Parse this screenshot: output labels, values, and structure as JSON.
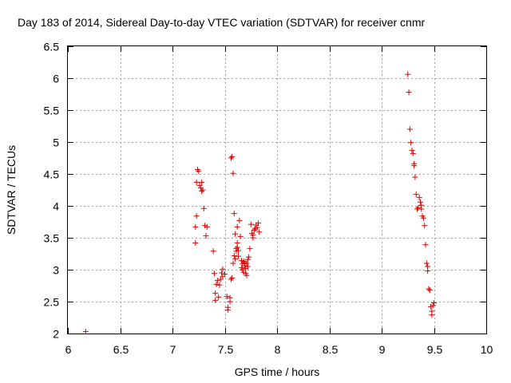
{
  "chart_data": {
    "type": "scatter",
    "title": "Day 183 of 2014, Sidereal Day-to-day VTEC variation (SDTVAR) for receiver cnmr",
    "xlabel": "GPS time / hours",
    "ylabel": "SDTVAR / TECUs",
    "xlim": [
      6,
      10
    ],
    "ylim": [
      2,
      6.5
    ],
    "xticks": [
      "6",
      "6.5",
      "7",
      "7.5",
      "8",
      "8.5",
      "9",
      "9.5",
      "10"
    ],
    "yticks": [
      "2",
      "2.5",
      "3",
      "3.5",
      "4",
      "4.5",
      "5",
      "5.5",
      "6",
      "6.5"
    ],
    "grid": true,
    "marker": "+",
    "marker_color": "#dd0000",
    "series": [
      {
        "name": "SDTVAR",
        "points": [
          [
            6.17,
            2.03
          ],
          [
            7.22,
            3.42
          ],
          [
            7.22,
            3.67
          ],
          [
            7.23,
            3.84
          ],
          [
            7.23,
            4.37
          ],
          [
            7.24,
            4.57
          ],
          [
            7.25,
            4.54
          ],
          [
            7.26,
            4.32
          ],
          [
            7.27,
            4.28
          ],
          [
            7.28,
            4.37
          ],
          [
            7.28,
            4.23
          ],
          [
            7.29,
            4.25
          ],
          [
            7.3,
            3.96
          ],
          [
            7.31,
            3.69
          ],
          [
            7.32,
            3.53
          ],
          [
            7.33,
            3.67
          ],
          [
            7.39,
            3.29
          ],
          [
            7.4,
            2.94
          ],
          [
            7.41,
            2.52
          ],
          [
            7.41,
            2.63
          ],
          [
            7.42,
            2.77
          ],
          [
            7.43,
            2.83
          ],
          [
            7.44,
            2.57
          ],
          [
            7.45,
            2.76
          ],
          [
            7.46,
            2.85
          ],
          [
            7.47,
            2.95
          ],
          [
            7.48,
            3.01
          ],
          [
            7.48,
            2.89
          ],
          [
            7.5,
            2.93
          ],
          [
            7.52,
            2.58
          ],
          [
            7.53,
            2.41
          ],
          [
            7.53,
            2.37
          ],
          [
            7.55,
            2.56
          ],
          [
            7.55,
            2.5
          ],
          [
            7.56,
            2.85
          ],
          [
            7.56,
            4.75
          ],
          [
            7.57,
            4.77
          ],
          [
            7.57,
            2.87
          ],
          [
            7.58,
            4.51
          ],
          [
            7.58,
            3.1
          ],
          [
            7.59,
            3.88
          ],
          [
            7.59,
            3.22
          ],
          [
            7.6,
            3.17
          ],
          [
            7.6,
            3.56
          ],
          [
            7.61,
            3.33
          ],
          [
            7.61,
            3.29
          ],
          [
            7.62,
            3.42
          ],
          [
            7.62,
            3.35
          ],
          [
            7.62,
            3.67
          ],
          [
            7.63,
            3.21
          ],
          [
            7.63,
            3.3
          ],
          [
            7.64,
            3.77
          ],
          [
            7.65,
            3.52
          ],
          [
            7.66,
            3.14
          ],
          [
            7.66,
            3.03
          ],
          [
            7.67,
            3.09
          ],
          [
            7.67,
            3.0
          ],
          [
            7.68,
            3.13
          ],
          [
            7.68,
            2.96
          ],
          [
            7.69,
            3.06
          ],
          [
            7.69,
            3.11
          ],
          [
            7.7,
            3.02
          ],
          [
            7.7,
            2.94
          ],
          [
            7.71,
            3.1
          ],
          [
            7.71,
            2.91
          ],
          [
            7.72,
            3.16
          ],
          [
            7.72,
            3.05
          ],
          [
            7.73,
            3.2
          ],
          [
            7.74,
            3.33
          ],
          [
            7.75,
            3.71
          ],
          [
            7.76,
            3.57
          ],
          [
            7.77,
            3.5
          ],
          [
            7.77,
            3.54
          ],
          [
            7.78,
            3.62
          ],
          [
            7.79,
            3.64
          ],
          [
            7.8,
            3.7
          ],
          [
            7.81,
            3.66
          ],
          [
            7.82,
            3.73
          ],
          [
            7.83,
            3.59
          ],
          [
            9.25,
            6.06
          ],
          [
            9.26,
            5.78
          ],
          [
            9.27,
            5.2
          ],
          [
            9.28,
            4.99
          ],
          [
            9.29,
            4.87
          ],
          [
            9.3,
            4.82
          ],
          [
            9.31,
            4.66
          ],
          [
            9.31,
            4.63
          ],
          [
            9.32,
            4.45
          ],
          [
            9.33,
            4.18
          ],
          [
            9.34,
            3.95
          ],
          [
            9.35,
            3.97
          ],
          [
            9.36,
            4.13
          ],
          [
            9.37,
            4.06
          ],
          [
            9.38,
            4.01
          ],
          [
            9.38,
            3.95
          ],
          [
            9.39,
            3.84
          ],
          [
            9.4,
            3.81
          ],
          [
            9.41,
            3.69
          ],
          [
            9.42,
            3.39
          ],
          [
            9.43,
            3.1
          ],
          [
            9.44,
            3.05
          ],
          [
            9.44,
            2.98
          ],
          [
            9.45,
            2.7
          ],
          [
            9.46,
            2.68
          ],
          [
            9.47,
            2.42
          ],
          [
            9.48,
            2.35
          ],
          [
            9.48,
            2.29
          ],
          [
            9.49,
            2.44
          ],
          [
            9.5,
            2.48
          ]
        ]
      }
    ]
  }
}
